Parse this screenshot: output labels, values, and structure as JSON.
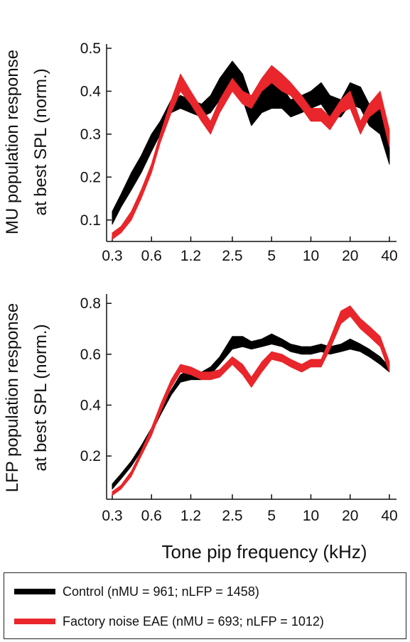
{
  "colors": {
    "control": "#000000",
    "eae": "#e8262b"
  },
  "xlabel": "Tone pip frequency (kHz)",
  "legend": [
    {
      "name": "Control (nMU = 961; nLFP = 1458)",
      "color": "#000000"
    },
    {
      "name": "Factory noise EAE (nMU = 693; nLFP = 1012)",
      "color": "#e8262b"
    }
  ],
  "chart_data": [
    {
      "type": "area",
      "ylabel_lines": [
        "MU population response",
        "at best SPL (norm.)"
      ],
      "x_scale": "log",
      "x_ticks": [
        0.3,
        0.6,
        1.2,
        2.5,
        5,
        10,
        20,
        40
      ],
      "x_tick_labels": [
        "0.3",
        "0.6",
        "1.2",
        "2.5",
        "5",
        "10",
        "20",
        "40"
      ],
      "xlim": [
        0.3,
        40
      ],
      "y_ticks": [
        0.1,
        0.2,
        0.3,
        0.4,
        0.5
      ],
      "y_tick_labels": [
        "0.1",
        "0.2",
        "0.3",
        "0.4",
        "0.5"
      ],
      "ylim": [
        0.05,
        0.5
      ],
      "x": [
        0.3,
        0.35,
        0.42,
        0.5,
        0.6,
        0.7,
        0.85,
        1.0,
        1.2,
        1.45,
        1.7,
        2.0,
        2.5,
        3.0,
        3.5,
        4.2,
        5,
        6,
        7,
        8.5,
        10,
        12,
        14,
        17,
        20,
        24,
        28,
        34,
        40
      ],
      "series": [
        {
          "name": "Control (nMU = 961; nLFP = 1458)",
          "lower": [
            0.09,
            0.13,
            0.17,
            0.21,
            0.26,
            0.3,
            0.35,
            0.36,
            0.35,
            0.34,
            0.35,
            0.38,
            0.4,
            0.38,
            0.32,
            0.35,
            0.36,
            0.36,
            0.34,
            0.35,
            0.36,
            0.37,
            0.34,
            0.34,
            0.37,
            0.36,
            0.32,
            0.3,
            0.23
          ],
          "upper": [
            0.12,
            0.16,
            0.21,
            0.25,
            0.3,
            0.33,
            0.38,
            0.39,
            0.38,
            0.37,
            0.39,
            0.43,
            0.47,
            0.44,
            0.38,
            0.41,
            0.43,
            0.41,
            0.38,
            0.39,
            0.4,
            0.42,
            0.39,
            0.38,
            0.42,
            0.41,
            0.37,
            0.36,
            0.28
          ]
        },
        {
          "name": "Factory noise EAE (nMU = 693; nLFP = 1012)",
          "lower": [
            0.055,
            0.07,
            0.1,
            0.15,
            0.21,
            0.28,
            0.35,
            0.4,
            0.37,
            0.33,
            0.3,
            0.35,
            0.4,
            0.37,
            0.36,
            0.4,
            0.42,
            0.4,
            0.39,
            0.36,
            0.33,
            0.33,
            0.31,
            0.35,
            0.36,
            0.3,
            0.34,
            0.36,
            0.27
          ],
          "upper": [
            0.07,
            0.085,
            0.12,
            0.17,
            0.23,
            0.3,
            0.38,
            0.44,
            0.4,
            0.36,
            0.33,
            0.38,
            0.43,
            0.4,
            0.39,
            0.43,
            0.46,
            0.44,
            0.42,
            0.39,
            0.36,
            0.36,
            0.34,
            0.38,
            0.4,
            0.33,
            0.37,
            0.4,
            0.31
          ]
        }
      ]
    },
    {
      "type": "area",
      "ylabel_lines": [
        "LFP population response",
        "at best SPL (norm.)"
      ],
      "x_scale": "log",
      "x_ticks": [
        0.3,
        0.6,
        1.2,
        2.5,
        5,
        10,
        20,
        40
      ],
      "x_tick_labels": [
        "0.3",
        "0.6",
        "1.2",
        "2.5",
        "5",
        "10",
        "20",
        "40"
      ],
      "xlim": [
        0.3,
        40
      ],
      "y_ticks": [
        0.2,
        0.4,
        0.6,
        0.8
      ],
      "y_tick_labels": [
        "0.2",
        "0.4",
        "0.6",
        "0.8"
      ],
      "ylim": [
        0.03,
        0.82
      ],
      "x": [
        0.3,
        0.35,
        0.42,
        0.5,
        0.6,
        0.7,
        0.85,
        1.0,
        1.2,
        1.45,
        1.7,
        2.0,
        2.5,
        3.0,
        3.5,
        4.2,
        5,
        6,
        7,
        8.5,
        10,
        12,
        14,
        17,
        20,
        24,
        28,
        34,
        40
      ],
      "series": [
        {
          "name": "Control (nMU = 961; nLFP = 1458)",
          "lower": [
            0.07,
            0.11,
            0.16,
            0.22,
            0.29,
            0.36,
            0.44,
            0.49,
            0.5,
            0.5,
            0.52,
            0.56,
            0.62,
            0.63,
            0.62,
            0.63,
            0.64,
            0.63,
            0.61,
            0.6,
            0.6,
            0.61,
            0.6,
            0.61,
            0.62,
            0.61,
            0.59,
            0.56,
            0.53
          ],
          "upper": [
            0.09,
            0.13,
            0.18,
            0.24,
            0.31,
            0.38,
            0.46,
            0.52,
            0.54,
            0.53,
            0.55,
            0.59,
            0.67,
            0.67,
            0.65,
            0.66,
            0.68,
            0.66,
            0.64,
            0.63,
            0.63,
            0.64,
            0.63,
            0.64,
            0.66,
            0.64,
            0.62,
            0.59,
            0.55
          ]
        },
        {
          "name": "Factory noise EAE (nMU = 693; nLFP = 1012)",
          "lower": [
            0.045,
            0.07,
            0.12,
            0.2,
            0.28,
            0.37,
            0.47,
            0.53,
            0.52,
            0.5,
            0.5,
            0.51,
            0.56,
            0.52,
            0.47,
            0.53,
            0.58,
            0.57,
            0.55,
            0.53,
            0.55,
            0.55,
            0.62,
            0.72,
            0.75,
            0.7,
            0.67,
            0.63,
            0.53
          ],
          "upper": [
            0.06,
            0.085,
            0.14,
            0.22,
            0.31,
            0.4,
            0.5,
            0.56,
            0.55,
            0.53,
            0.53,
            0.54,
            0.59,
            0.56,
            0.51,
            0.57,
            0.61,
            0.6,
            0.58,
            0.56,
            0.58,
            0.58,
            0.66,
            0.77,
            0.79,
            0.74,
            0.71,
            0.67,
            0.57
          ]
        }
      ]
    }
  ]
}
